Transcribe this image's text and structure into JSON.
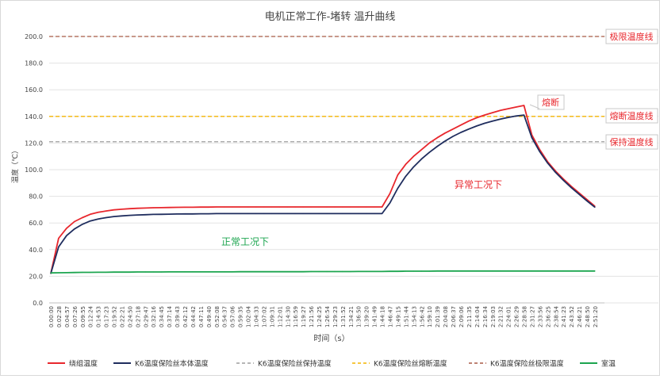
{
  "chart_data": {
    "type": "line",
    "title": "电机正常工作-堵转 温升曲线",
    "xlabel": "时间（s）",
    "ylabel": "温度（℃）",
    "ylim": [
      0,
      200
    ],
    "y_ticks": [
      "0.0",
      "20.0",
      "40.0",
      "60.0",
      "80.0",
      "100.0",
      "120.0",
      "140.0",
      "160.0",
      "180.0",
      "200.0"
    ],
    "grid": true,
    "legend_position": "bottom",
    "x_ticks": [
      "0:00:00",
      "0:02:28",
      "0:04:57",
      "0:07:26",
      "0:09:55",
      "0:12:24",
      "0:14:53",
      "0:17:23",
      "0:19:52",
      "0:22:21",
      "0:24:50",
      "0:27:18",
      "0:29:47",
      "0:32:16",
      "0:34:45",
      "0:37:14",
      "0:39:43",
      "0:42:12",
      "0:44:42",
      "0:47:11",
      "0:49:40",
      "0:52:08",
      "0:54:37",
      "0:57:06",
      "0:59:35",
      "1:02:04",
      "1:04:33",
      "1:07:02",
      "1:09:31",
      "1:12:01",
      "1:14:30",
      "1:16:59",
      "1:19:27",
      "1:21:56",
      "1:24:25",
      "1:26:54",
      "1:29:23",
      "1:31:52",
      "1:34:21",
      "1:36:50",
      "1:39:20",
      "1:41:49",
      "1:44:18",
      "1:46:47",
      "1:49:15",
      "1:51:44",
      "1:54:13",
      "1:56:42",
      "1:59:10",
      "2:01:39",
      "2:04:08",
      "2:06:37",
      "2:09:06",
      "2:11:35",
      "2:14:04",
      "2:16:34",
      "2:19:03",
      "2:21:32",
      "2:24:01",
      "2:26:29",
      "2:28:58",
      "2:31:27",
      "2:33:56",
      "2:36:25",
      "2:38:54",
      "2:41:23",
      "2:43:52",
      "2:46:21",
      "2:48:50",
      "2:51:20"
    ],
    "series": [
      {
        "name": "绕组温度",
        "color": "#e8272d",
        "values": [
          22.0,
          48.5,
          56.0,
          61.0,
          64.0,
          66.5,
          68.0,
          69.0,
          69.8,
          70.3,
          70.7,
          71.0,
          71.2,
          71.4,
          71.5,
          71.6,
          71.7,
          71.8,
          71.8,
          71.9,
          71.9,
          72.0,
          72.0,
          72.0,
          72.0,
          72.0,
          72.0,
          72.0,
          72.0,
          72.0,
          72.0,
          72.0,
          72.0,
          72.0,
          72.0,
          72.0,
          72.0,
          72.0,
          72.0,
          72.0,
          72.0,
          72.0,
          72.0,
          82.0,
          96.0,
          104.0,
          110.0,
          115.0,
          120.0,
          124.0,
          127.5,
          130.5,
          133.5,
          136.5,
          139.0,
          141.0,
          142.8,
          144.5,
          145.8,
          147.0,
          148.2,
          126.0,
          115.0,
          106.0,
          99.0,
          93.0,
          87.5,
          82.5,
          77.5,
          72.5
        ]
      },
      {
        "name": "K6温度保险丝本体温度",
        "color": "#1f2d5e",
        "values": [
          22.0,
          42.0,
          50.5,
          55.5,
          59.0,
          61.5,
          63.0,
          64.0,
          64.8,
          65.3,
          65.7,
          66.0,
          66.2,
          66.4,
          66.5,
          66.6,
          66.7,
          66.8,
          66.8,
          66.9,
          66.9,
          67.0,
          67.0,
          67.0,
          67.0,
          67.0,
          67.0,
          67.0,
          67.0,
          67.0,
          67.0,
          67.0,
          67.0,
          67.0,
          67.0,
          67.0,
          67.0,
          67.0,
          67.0,
          67.0,
          67.0,
          67.0,
          67.0,
          75.0,
          86.0,
          95.0,
          102.0,
          108.0,
          113.0,
          117.5,
          121.5,
          125.0,
          128.0,
          130.5,
          132.8,
          134.8,
          136.5,
          138.0,
          139.2,
          140.3,
          141.0,
          124.0,
          113.5,
          105.0,
          98.0,
          92.0,
          86.5,
          81.5,
          76.5,
          71.8
        ]
      },
      {
        "name": "K6温度保险丝保持温度",
        "color": "#9e9e9e",
        "constant": 121
      },
      {
        "name": "K6温度保险丝熔断温度",
        "color": "#f4b400",
        "constant": 140
      },
      {
        "name": "K6温度保险丝极限温度",
        "color": "#a85a45",
        "constant": 200
      },
      {
        "name": "室温",
        "color": "#1ca54f",
        "values": [
          22.5,
          22.6,
          22.7,
          22.8,
          22.9,
          22.9,
          23.0,
          23.0,
          23.1,
          23.1,
          23.1,
          23.2,
          23.2,
          23.2,
          23.2,
          23.3,
          23.3,
          23.3,
          23.3,
          23.3,
          23.3,
          23.3,
          23.3,
          23.3,
          23.4,
          23.4,
          23.4,
          23.4,
          23.4,
          23.4,
          23.4,
          23.4,
          23.4,
          23.5,
          23.5,
          23.5,
          23.5,
          23.5,
          23.5,
          23.6,
          23.6,
          23.6,
          23.6,
          23.7,
          23.7,
          23.8,
          23.8,
          23.8,
          23.8,
          23.9,
          23.9,
          23.9,
          23.9,
          23.9,
          23.9,
          23.9,
          23.9,
          23.9,
          23.9,
          23.9,
          23.9,
          23.9,
          23.9,
          23.9,
          23.9,
          23.9,
          23.9,
          23.9,
          23.9,
          23.9
        ]
      }
    ],
    "annotations": {
      "limit": "极限温度线",
      "fuse_blow": "熔断温度线",
      "hold": "保持温度线",
      "blown": "熔断",
      "abnormal": "异常工况下",
      "normal": "正常工况下"
    }
  }
}
